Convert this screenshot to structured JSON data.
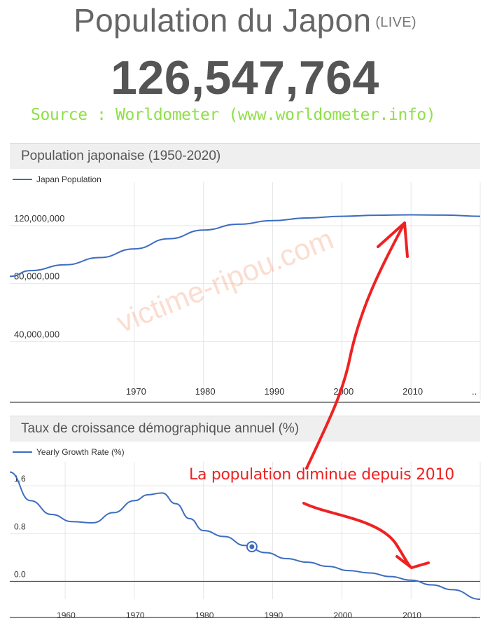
{
  "header": {
    "title": "Population du Japon",
    "live_label": "(LIVE)",
    "counter": "126,547,764",
    "source": "Source : Worldometer (www.worldometer.info)"
  },
  "annotation": "La population diminue depuis 2010",
  "watermark": "victime-ripou.com",
  "colors": {
    "line": "#3d6cc0",
    "annotation": "#ee2222",
    "source": "#8fe046"
  },
  "chart_data": [
    {
      "type": "line",
      "title": "Population japonaise (1950-2020)",
      "legend": [
        "Japan Population"
      ],
      "legend_position": "top-left",
      "xlim": [
        1952,
        2020
      ],
      "ylim": [
        0,
        150000000
      ],
      "xticks": [
        "1970",
        "1980",
        "1990",
        "2000",
        "2010",
        ".."
      ],
      "xtick_values": [
        1970,
        1980,
        1990,
        2000,
        2010,
        2020
      ],
      "yticks": [
        "40,000,000",
        "80,000,000",
        "120,000,000"
      ],
      "ytick_values": [
        40000000,
        80000000,
        120000000
      ],
      "grid": true,
      "series": [
        {
          "name": "Japan Population",
          "x": [
            1952,
            1955,
            1960,
            1965,
            1970,
            1975,
            1980,
            1985,
            1990,
            1995,
            2000,
            2005,
            2010,
            2015,
            2020
          ],
          "values": [
            85000000,
            89000000,
            93000000,
            98000000,
            104000000,
            111000000,
            117000000,
            121000000,
            123500000,
            125300000,
            126500000,
            127200000,
            127500000,
            127300000,
            126500000
          ]
        }
      ]
    },
    {
      "type": "line",
      "title": "Taux de croissance démographique annuel (%)",
      "legend": [
        "Yearly Growth Rate (%)"
      ],
      "legend_position": "top-left",
      "xlim": [
        1952,
        2020
      ],
      "ylim": [
        -0.3,
        2.0
      ],
      "xticks": [
        "1960",
        "1970",
        "1980",
        "1990",
        "2000",
        "2010",
        ".."
      ],
      "xtick_values": [
        1960,
        1970,
        1980,
        1990,
        2000,
        2010,
        2020
      ],
      "yticks": [
        "0.0",
        "0.8",
        "1.6"
      ],
      "ytick_values": [
        0,
        0.8,
        1.6
      ],
      "grid": true,
      "highlight_point": {
        "x": 1987,
        "y": 0.58
      },
      "series": [
        {
          "name": "Yearly Growth Rate (%)",
          "x": [
            1952,
            1955,
            1958,
            1961,
            1964,
            1967,
            1970,
            1972,
            1974,
            1976,
            1978,
            1980,
            1983,
            1986,
            1989,
            1992,
            1995,
            1998,
            2001,
            2004,
            2007,
            2010,
            2013,
            2016,
            2020
          ],
          "values": [
            1.83,
            1.35,
            1.12,
            1.0,
            0.98,
            1.15,
            1.35,
            1.45,
            1.48,
            1.3,
            1.05,
            0.85,
            0.75,
            0.6,
            0.48,
            0.38,
            0.32,
            0.25,
            0.18,
            0.14,
            0.08,
            0.02,
            -0.06,
            -0.14,
            -0.3
          ]
        }
      ]
    }
  ]
}
